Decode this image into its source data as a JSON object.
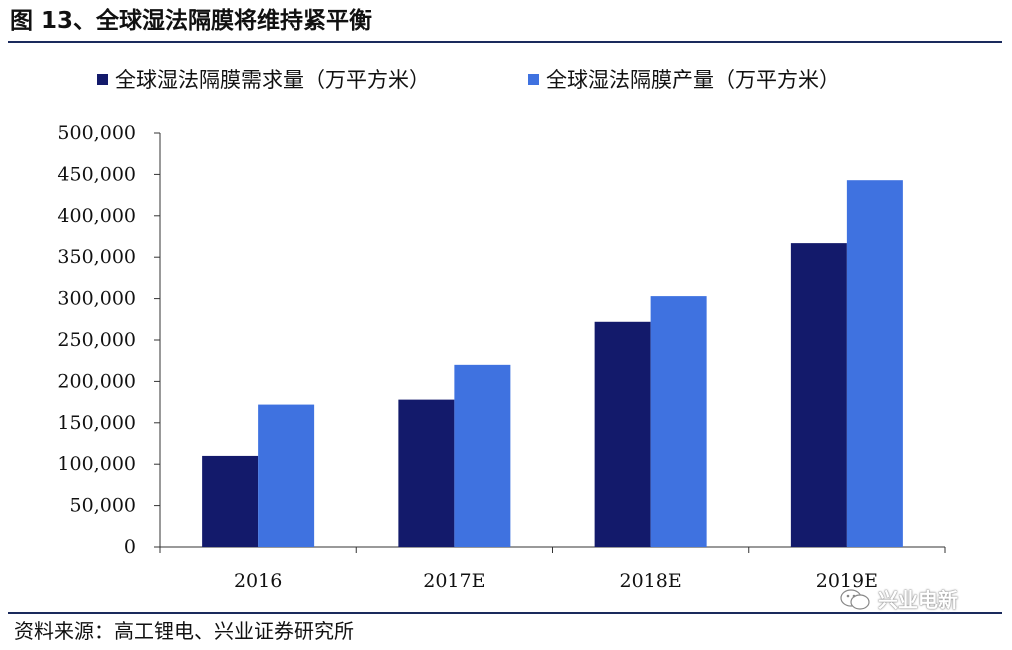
{
  "figure": {
    "title": "图 13、全球湿法隔膜将维持紧平衡",
    "source": "资料来源：高工锂电、兴业证券研究所",
    "watermark": "兴业电新"
  },
  "colors": {
    "demand": "#131a6b",
    "supply": "#3f72e0",
    "rule": "#1a2a5c",
    "axis": "#333333"
  },
  "chart_data": {
    "type": "bar",
    "categories": [
      "2016",
      "2017E",
      "2018E",
      "2019E"
    ],
    "series": [
      {
        "name": "全球湿法隔膜需求量（万平方米）",
        "values": [
          110000,
          178000,
          272000,
          367000
        ]
      },
      {
        "name": "全球湿法隔膜产量（万平方米）",
        "values": [
          172000,
          220000,
          303000,
          443000
        ]
      }
    ],
    "ylim": [
      0,
      500000
    ],
    "yticks": [
      "0",
      "50,000",
      "100,000",
      "150,000",
      "200,000",
      "250,000",
      "300,000",
      "350,000",
      "400,000",
      "450,000",
      "500,000"
    ],
    "grid": false,
    "legend_position": "top"
  }
}
